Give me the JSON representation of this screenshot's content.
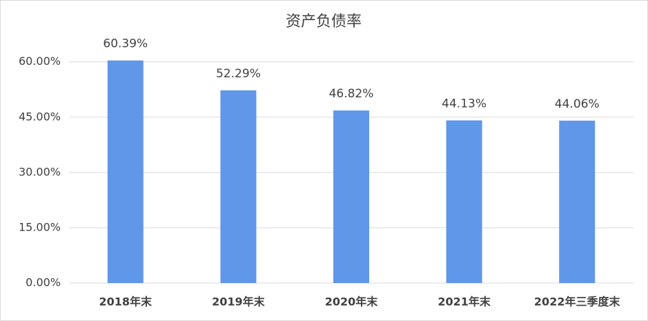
{
  "chart_data": {
    "type": "bar",
    "title": "资产负债率",
    "categories": [
      "2018年末",
      "2019年末",
      "2020年末",
      "2021年末",
      "2022年三季度末"
    ],
    "values": [
      60.39,
      52.29,
      46.82,
      44.13,
      44.06
    ],
    "value_labels": [
      "60.39%",
      "52.29%",
      "46.82%",
      "44.13%",
      "44.06%"
    ],
    "color": "#6097e8",
    "ylim": [
      0,
      65
    ],
    "yticks": [
      {
        "value": 0,
        "label": "0.00%"
      },
      {
        "value": 15,
        "label": "15.00%"
      },
      {
        "value": 30,
        "label": "30.00%"
      },
      {
        "value": 45,
        "label": "45.00%"
      },
      {
        "value": 60,
        "label": "60.00%"
      }
    ],
    "grid": true
  }
}
